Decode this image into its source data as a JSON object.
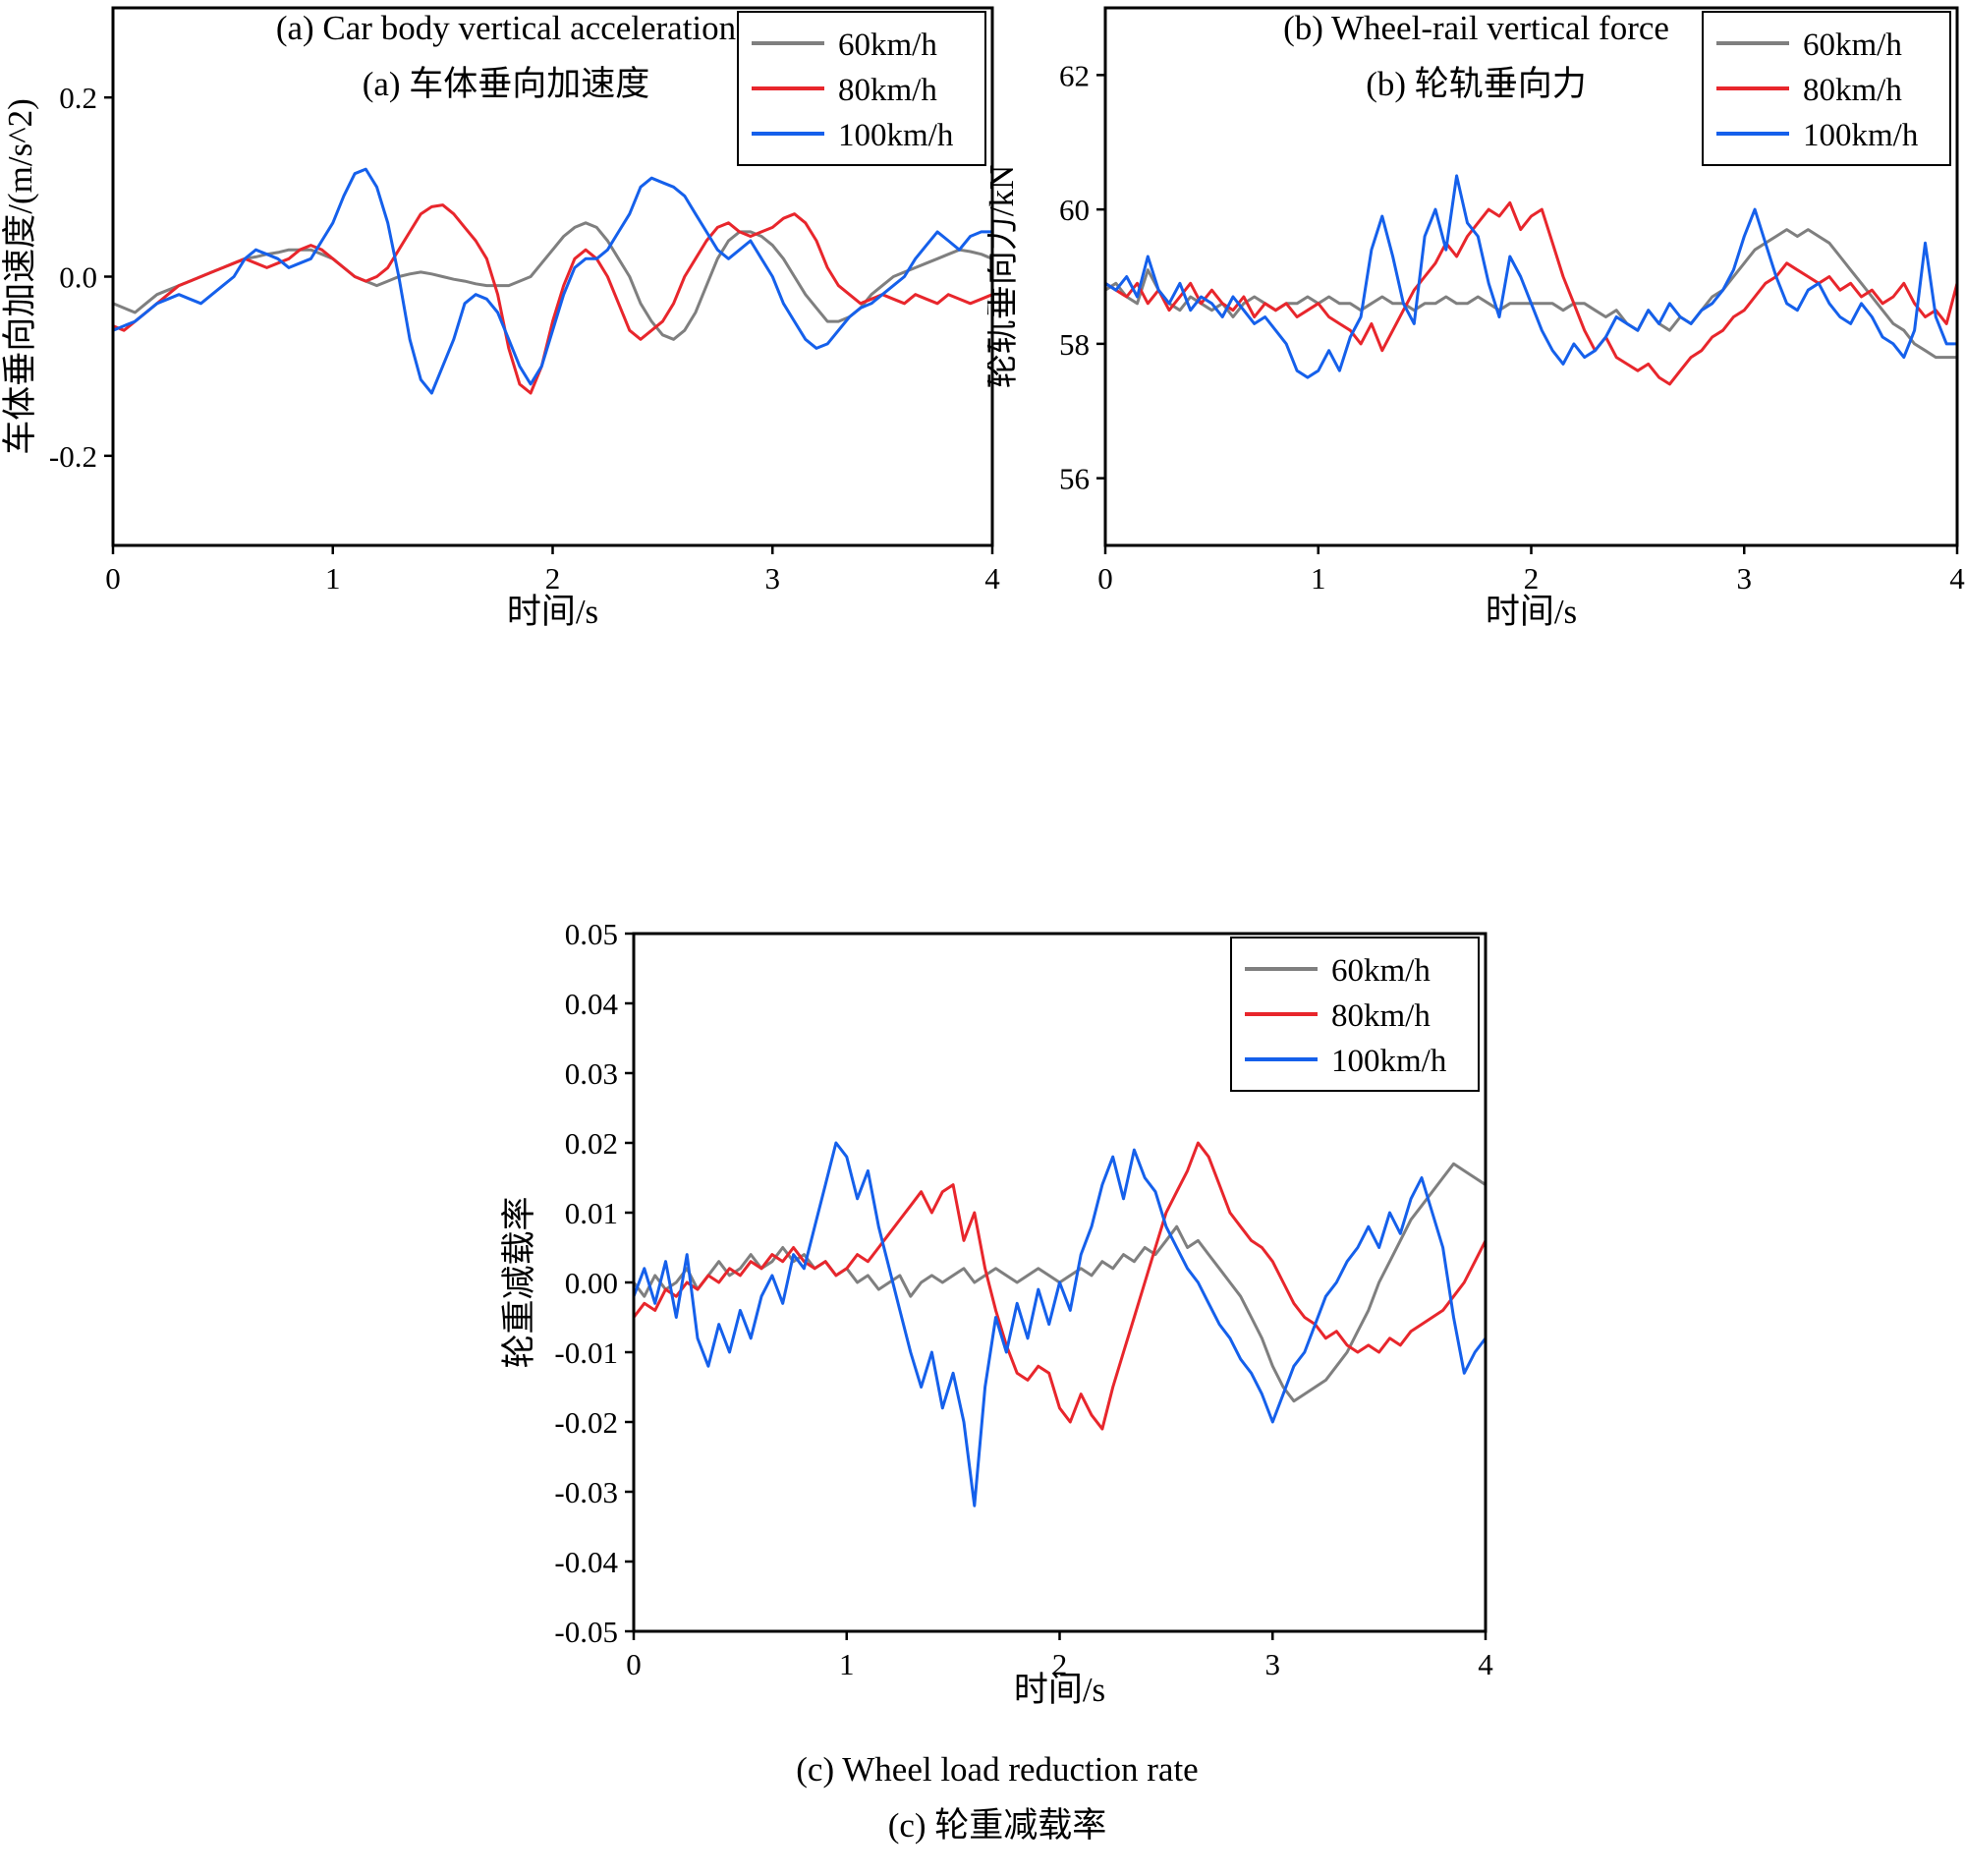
{
  "figure": {
    "background": "#ffffff",
    "frame_color": "#000000",
    "legend_position": "top-right-inside",
    "speeds": [
      "60km/h",
      "80km/h",
      "100km/h"
    ],
    "series_colors": {
      "gray": "#7f7f7f",
      "red": "#e8262c",
      "blue": "#1560eb"
    }
  },
  "chart_data": [
    {
      "id": "a",
      "type": "line",
      "title": "",
      "caption_en": "(a) Car body vertical acceleration",
      "caption_zh": "(a) 车体垂向加速度",
      "xlabel": "时间/s",
      "ylabel": "车体垂向加速度/(m/s^2)",
      "xlim": [
        0,
        4
      ],
      "ylim": [
        -0.3,
        0.3
      ],
      "grid": false,
      "xticks": [
        0,
        1,
        2,
        3,
        4
      ],
      "xtick_labels": [
        "0",
        "1",
        "2",
        "3",
        "4"
      ],
      "yticks": [
        -0.2,
        0.0,
        0.2
      ],
      "ytick_labels": [
        "-0.2",
        "0.0",
        "0.2"
      ],
      "series": [
        {
          "name": "60km/h",
          "color": "#7f7f7f",
          "y": [
            -0.03,
            -0.035,
            -0.04,
            -0.03,
            -0.02,
            -0.015,
            -0.01,
            -0.005,
            0.0,
            0.005,
            0.01,
            0.015,
            0.02,
            0.022,
            0.025,
            0.027,
            0.03,
            0.03,
            0.03,
            0.025,
            0.02,
            0.01,
            0.0,
            -0.005,
            -0.01,
            -0.005,
            0.0,
            0.003,
            0.005,
            0.003,
            0.0,
            -0.003,
            -0.005,
            -0.008,
            -0.01,
            -0.01,
            -0.01,
            -0.005,
            0.0,
            0.015,
            0.03,
            0.045,
            0.055,
            0.06,
            0.055,
            0.04,
            0.02,
            0.0,
            -0.03,
            -0.05,
            -0.065,
            -0.07,
            -0.06,
            -0.04,
            -0.01,
            0.02,
            0.04,
            0.05,
            0.05,
            0.045,
            0.035,
            0.02,
            0.0,
            -0.02,
            -0.035,
            -0.05,
            -0.05,
            -0.045,
            -0.035,
            -0.02,
            -0.01,
            0.0,
            0.005,
            0.01,
            0.015,
            0.02,
            0.025,
            0.03,
            0.028,
            0.025,
            0.02
          ]
        },
        {
          "name": "80km/h",
          "color": "#e8262c",
          "y": [
            -0.055,
            -0.06,
            -0.05,
            -0.04,
            -0.03,
            -0.02,
            -0.01,
            -0.005,
            0.0,
            0.005,
            0.01,
            0.015,
            0.02,
            0.015,
            0.01,
            0.015,
            0.02,
            0.03,
            0.035,
            0.03,
            0.02,
            0.01,
            0.0,
            -0.005,
            0.0,
            0.01,
            0.03,
            0.05,
            0.07,
            0.078,
            0.08,
            0.07,
            0.055,
            0.04,
            0.02,
            -0.02,
            -0.08,
            -0.12,
            -0.13,
            -0.1,
            -0.05,
            -0.01,
            0.02,
            0.03,
            0.02,
            0.0,
            -0.03,
            -0.06,
            -0.07,
            -0.06,
            -0.05,
            -0.03,
            0.0,
            0.02,
            0.04,
            0.055,
            0.06,
            0.05,
            0.045,
            0.05,
            0.055,
            0.065,
            0.07,
            0.06,
            0.04,
            0.01,
            -0.01,
            -0.02,
            -0.03,
            -0.025,
            -0.02,
            -0.025,
            -0.03,
            -0.02,
            -0.025,
            -0.03,
            -0.02,
            -0.025,
            -0.03,
            -0.025,
            -0.02
          ]
        },
        {
          "name": "100km/h",
          "color": "#1560eb",
          "y": [
            -0.06,
            -0.055,
            -0.05,
            -0.04,
            -0.03,
            -0.025,
            -0.02,
            -0.025,
            -0.03,
            -0.02,
            -0.01,
            0.0,
            0.02,
            0.03,
            0.025,
            0.02,
            0.01,
            0.015,
            0.02,
            0.04,
            0.06,
            0.09,
            0.115,
            0.12,
            0.1,
            0.06,
            0.0,
            -0.07,
            -0.115,
            -0.13,
            -0.1,
            -0.07,
            -0.03,
            -0.02,
            -0.025,
            -0.04,
            -0.07,
            -0.1,
            -0.12,
            -0.1,
            -0.06,
            -0.02,
            0.01,
            0.02,
            0.02,
            0.03,
            0.05,
            0.07,
            0.1,
            0.11,
            0.105,
            0.1,
            0.09,
            0.07,
            0.05,
            0.03,
            0.02,
            0.03,
            0.04,
            0.02,
            0.0,
            -0.03,
            -0.05,
            -0.07,
            -0.08,
            -0.075,
            -0.06,
            -0.045,
            -0.035,
            -0.03,
            -0.02,
            -0.01,
            0.0,
            0.02,
            0.035,
            0.05,
            0.04,
            0.03,
            0.045,
            0.05,
            0.05
          ]
        }
      ]
    },
    {
      "id": "b",
      "type": "line",
      "title": "",
      "caption_en": "(b) Wheel-rail vertical force",
      "caption_zh": "(b) 轮轨垂向力",
      "xlabel": "时间/s",
      "ylabel": "轮轨垂向力/kN",
      "xlim": [
        0,
        4
      ],
      "ylim": [
        55,
        63
      ],
      "grid": false,
      "xticks": [
        0,
        1,
        2,
        3,
        4
      ],
      "xtick_labels": [
        "0",
        "1",
        "2",
        "3",
        "4"
      ],
      "yticks": [
        56,
        58,
        60,
        62
      ],
      "ytick_labels": [
        "56",
        "58",
        "60",
        "62"
      ],
      "series": [
        {
          "name": "60km/h",
          "color": "#7f7f7f",
          "y": [
            58.8,
            58.9,
            58.7,
            58.6,
            59.1,
            58.8,
            58.6,
            58.5,
            58.7,
            58.6,
            58.5,
            58.6,
            58.4,
            58.6,
            58.7,
            58.6,
            58.5,
            58.6,
            58.6,
            58.7,
            58.6,
            58.7,
            58.6,
            58.6,
            58.5,
            58.6,
            58.7,
            58.6,
            58.6,
            58.5,
            58.6,
            58.6,
            58.7,
            58.6,
            58.6,
            58.7,
            58.6,
            58.5,
            58.6,
            58.6,
            58.6,
            58.6,
            58.6,
            58.5,
            58.6,
            58.6,
            58.5,
            58.4,
            58.5,
            58.3,
            58.2,
            58.5,
            58.3,
            58.2,
            58.4,
            58.3,
            58.5,
            58.7,
            58.8,
            59.0,
            59.2,
            59.4,
            59.5,
            59.6,
            59.7,
            59.6,
            59.7,
            59.6,
            59.5,
            59.3,
            59.1,
            58.9,
            58.7,
            58.5,
            58.3,
            58.2,
            58.0,
            57.9,
            57.8,
            57.8,
            57.8
          ]
        },
        {
          "name": "80km/h",
          "color": "#e8262c",
          "y": [
            58.9,
            58.8,
            58.7,
            58.9,
            58.6,
            58.8,
            58.5,
            58.7,
            58.9,
            58.6,
            58.8,
            58.6,
            58.5,
            58.7,
            58.4,
            58.6,
            58.5,
            58.6,
            58.4,
            58.5,
            58.6,
            58.4,
            58.3,
            58.2,
            58.0,
            58.3,
            57.9,
            58.2,
            58.5,
            58.8,
            59.0,
            59.2,
            59.5,
            59.3,
            59.6,
            59.8,
            60.0,
            59.9,
            60.1,
            59.7,
            59.9,
            60.0,
            59.5,
            59.0,
            58.6,
            58.2,
            57.9,
            58.1,
            57.8,
            57.7,
            57.6,
            57.7,
            57.5,
            57.4,
            57.6,
            57.8,
            57.9,
            58.1,
            58.2,
            58.4,
            58.5,
            58.7,
            58.9,
            59.0,
            59.2,
            59.1,
            59.0,
            58.9,
            59.0,
            58.8,
            58.9,
            58.7,
            58.8,
            58.6,
            58.7,
            58.9,
            58.6,
            58.4,
            58.5,
            58.3,
            58.9
          ]
        },
        {
          "name": "100km/h",
          "color": "#1560eb",
          "y": [
            58.9,
            58.8,
            59.0,
            58.7,
            59.3,
            58.8,
            58.6,
            58.9,
            58.5,
            58.7,
            58.6,
            58.4,
            58.7,
            58.5,
            58.3,
            58.4,
            58.2,
            58.0,
            57.6,
            57.5,
            57.6,
            57.9,
            57.6,
            58.1,
            58.4,
            59.4,
            59.9,
            59.3,
            58.6,
            58.3,
            59.6,
            60.0,
            59.4,
            60.5,
            59.8,
            59.6,
            58.9,
            58.4,
            59.3,
            59.0,
            58.6,
            58.2,
            57.9,
            57.7,
            58.0,
            57.8,
            57.9,
            58.1,
            58.4,
            58.3,
            58.2,
            58.5,
            58.3,
            58.6,
            58.4,
            58.3,
            58.5,
            58.6,
            58.8,
            59.1,
            59.6,
            60.0,
            59.5,
            59.0,
            58.6,
            58.5,
            58.8,
            58.9,
            58.6,
            58.4,
            58.3,
            58.6,
            58.4,
            58.1,
            58.0,
            57.8,
            58.2,
            59.5,
            58.4,
            58.0,
            58.0
          ]
        }
      ]
    },
    {
      "id": "c",
      "type": "line",
      "title": "",
      "caption_en": "(c) Wheel load reduction rate",
      "caption_zh": "(c) 轮重减载率",
      "xlabel": "时间/s",
      "ylabel": "轮重减载率",
      "xlim": [
        0,
        4
      ],
      "ylim": [
        -0.05,
        0.05
      ],
      "grid": false,
      "xticks": [
        0,
        1,
        2,
        3,
        4
      ],
      "xtick_labels": [
        "0",
        "1",
        "2",
        "3",
        "4"
      ],
      "yticks": [
        -0.05,
        -0.04,
        -0.03,
        -0.02,
        -0.01,
        0.0,
        0.01,
        0.02,
        0.03,
        0.04,
        0.05
      ],
      "ytick_labels": [
        "-0.05",
        "-0.04",
        "-0.03",
        "-0.02",
        "-0.01",
        "0.00",
        "0.01",
        "0.02",
        "0.03",
        "0.04",
        "0.05"
      ],
      "series": [
        {
          "name": "60km/h",
          "color": "#7f7f7f",
          "y": [
            0.0,
            -0.002,
            0.001,
            -0.001,
            0.0,
            0.002,
            -0.001,
            0.001,
            0.003,
            0.001,
            0.002,
            0.004,
            0.002,
            0.003,
            0.005,
            0.003,
            0.004,
            0.002,
            0.003,
            0.001,
            0.002,
            0.0,
            0.001,
            -0.001,
            0.0,
            0.001,
            -0.002,
            0.0,
            0.001,
            0.0,
            0.001,
            0.002,
            0.0,
            0.001,
            0.002,
            0.001,
            0.0,
            0.001,
            0.002,
            0.001,
            0.0,
            0.001,
            0.002,
            0.001,
            0.003,
            0.002,
            0.004,
            0.003,
            0.005,
            0.004,
            0.006,
            0.008,
            0.005,
            0.006,
            0.004,
            0.002,
            0.0,
            -0.002,
            -0.005,
            -0.008,
            -0.012,
            -0.015,
            -0.017,
            -0.016,
            -0.015,
            -0.014,
            -0.012,
            -0.01,
            -0.007,
            -0.004,
            0.0,
            0.003,
            0.006,
            0.009,
            0.011,
            0.013,
            0.015,
            0.017,
            0.016,
            0.015,
            0.014
          ]
        },
        {
          "name": "80km/h",
          "color": "#e8262c",
          "y": [
            -0.005,
            -0.003,
            -0.004,
            -0.001,
            -0.002,
            0.0,
            -0.001,
            0.001,
            0.0,
            0.002,
            0.001,
            0.003,
            0.002,
            0.004,
            0.003,
            0.005,
            0.003,
            0.002,
            0.003,
            0.001,
            0.002,
            0.004,
            0.003,
            0.005,
            0.007,
            0.009,
            0.011,
            0.013,
            0.01,
            0.013,
            0.014,
            0.006,
            0.01,
            0.002,
            -0.004,
            -0.009,
            -0.013,
            -0.014,
            -0.012,
            -0.013,
            -0.018,
            -0.02,
            -0.016,
            -0.019,
            -0.021,
            -0.015,
            -0.01,
            -0.005,
            0.0,
            0.005,
            0.01,
            0.013,
            0.016,
            0.02,
            0.018,
            0.014,
            0.01,
            0.008,
            0.006,
            0.005,
            0.003,
            0.0,
            -0.003,
            -0.005,
            -0.006,
            -0.008,
            -0.007,
            -0.009,
            -0.01,
            -0.009,
            -0.01,
            -0.008,
            -0.009,
            -0.007,
            -0.006,
            -0.005,
            -0.004,
            -0.002,
            0.0,
            0.003,
            0.006
          ]
        },
        {
          "name": "100km/h",
          "color": "#1560eb",
          "y": [
            -0.002,
            0.002,
            -0.003,
            0.003,
            -0.005,
            0.004,
            -0.008,
            -0.012,
            -0.006,
            -0.01,
            -0.004,
            -0.008,
            -0.002,
            0.001,
            -0.003,
            0.004,
            0.002,
            0.008,
            0.014,
            0.02,
            0.018,
            0.012,
            0.016,
            0.008,
            0.002,
            -0.004,
            -0.01,
            -0.015,
            -0.01,
            -0.018,
            -0.013,
            -0.02,
            -0.032,
            -0.015,
            -0.005,
            -0.01,
            -0.003,
            -0.008,
            -0.001,
            -0.006,
            0.0,
            -0.004,
            0.004,
            0.008,
            0.014,
            0.018,
            0.012,
            0.019,
            0.015,
            0.013,
            0.008,
            0.005,
            0.002,
            0.0,
            -0.003,
            -0.006,
            -0.008,
            -0.011,
            -0.013,
            -0.016,
            -0.02,
            -0.016,
            -0.012,
            -0.01,
            -0.006,
            -0.002,
            0.0,
            0.003,
            0.005,
            0.008,
            0.005,
            0.01,
            0.007,
            0.012,
            0.015,
            0.01,
            0.005,
            -0.005,
            -0.013,
            -0.01,
            -0.008
          ]
        }
      ]
    }
  ]
}
